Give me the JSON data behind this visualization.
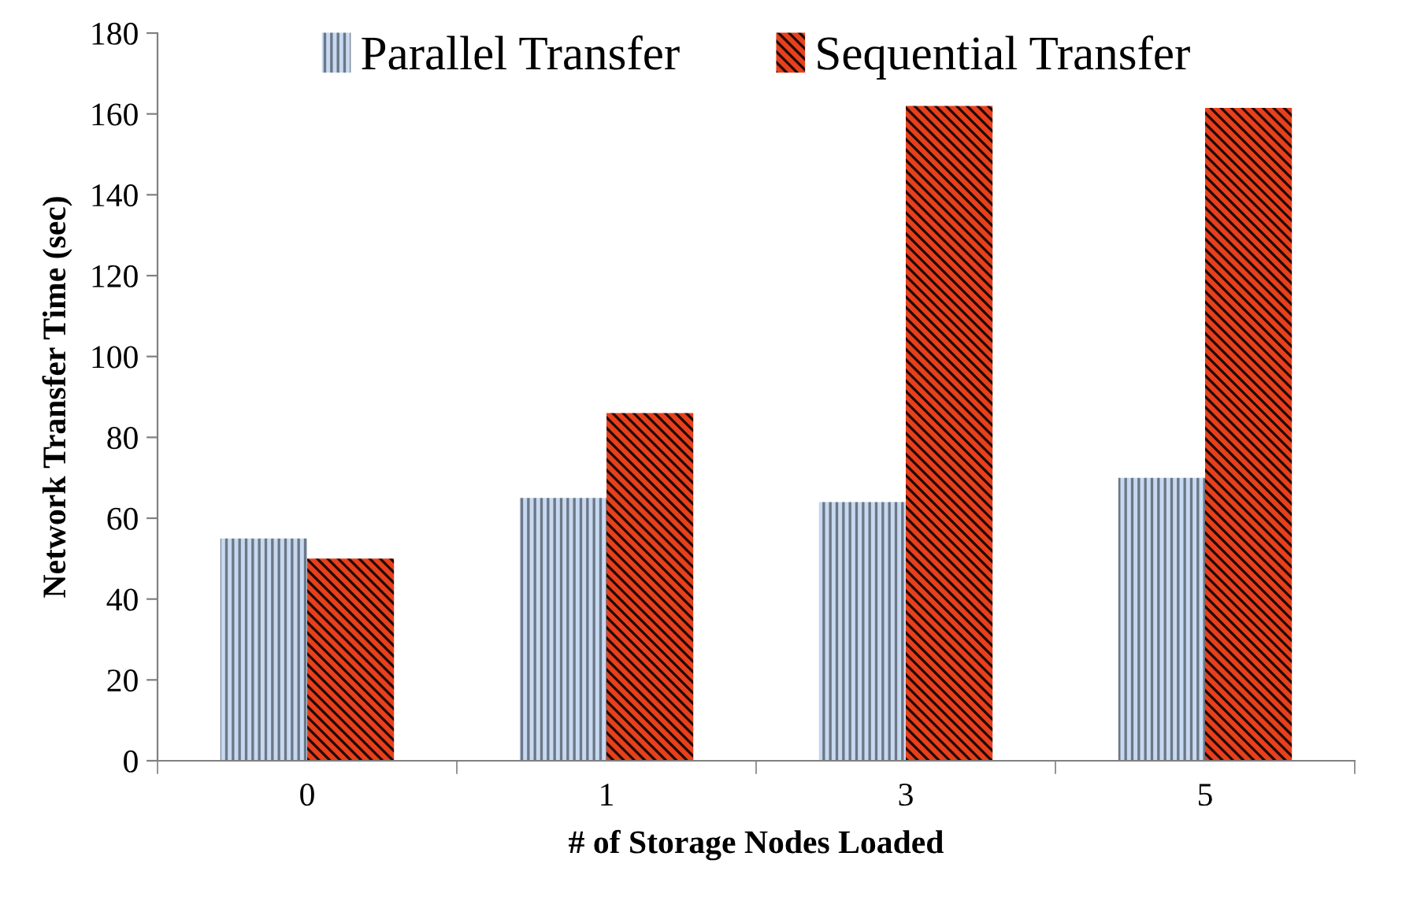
{
  "chart_data": {
    "type": "bar",
    "xlabel": "# of Storage Nodes Loaded",
    "ylabel": "Network Transfer Time (sec)",
    "categories": [
      "0",
      "1",
      "3",
      "5"
    ],
    "series": [
      {
        "name": "Parallel Transfer",
        "color": "#c6d9f1",
        "values": [
          55,
          65,
          64,
          70
        ]
      },
      {
        "name": "Sequential Transfer",
        "color": "#e8401c",
        "values": [
          50,
          86,
          162,
          161.5
        ]
      }
    ],
    "ylim": [
      0,
      180
    ],
    "yticks": [
      0,
      20,
      40,
      60,
      80,
      100,
      120,
      140,
      160,
      180
    ],
    "legend": "top",
    "grid": false
  }
}
